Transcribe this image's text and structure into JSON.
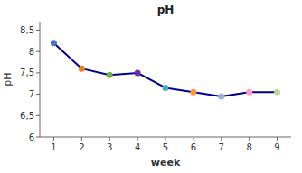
{
  "chart_data": {
    "type": "line",
    "title": "pH",
    "xlabel": "week",
    "ylabel": "pH",
    "x": [
      1,
      2,
      3,
      4,
      5,
      6,
      7,
      8,
      9
    ],
    "values": [
      8.2,
      7.6,
      7.45,
      7.5,
      7.15,
      7.05,
      6.95,
      7.05,
      7.05
    ],
    "color": "#00008B",
    "colors": [
      "#4472C4",
      "#ED7D31",
      "#70AD47",
      "#7030A0",
      "#4BACC6",
      "#F79646",
      "#95B3D7",
      "#FF99CC",
      "#C4D79B"
    ],
    "marker": "circle",
    "xlim": [
      0.5,
      9.5
    ],
    "xticks": [
      1,
      2,
      3,
      4,
      5,
      6,
      7,
      8,
      9
    ],
    "ylim": [
      6.0,
      8.7
    ],
    "yticks": [
      6,
      {
        "value": 6.5,
        "label": "6,5"
      },
      7,
      {
        "value": 7.5,
        "label": "7,5"
      },
      8,
      {
        "value": 8.5,
        "label": "8,5"
      }
    ],
    "grid": false
  }
}
